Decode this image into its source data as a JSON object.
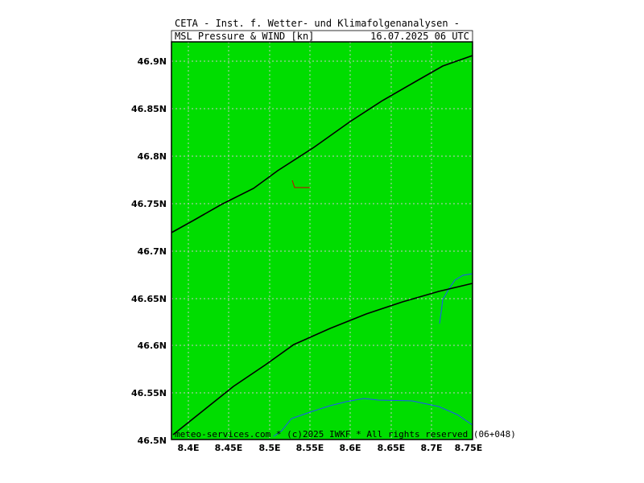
{
  "header": {
    "line1": "CETA - Inst. f. Wetter- und Klimafolgenanalysen -",
    "product": "MSL_Pressure_&_WIND_[kn]",
    "valid_time": "16.07.2025 06 UTC"
  },
  "map": {
    "background_color": "#00dd00",
    "grid_color": "#c8c8c8",
    "isobar_color": "#000000",
    "coast_color": "#2050ff",
    "wind_barb_color": "#cc0000",
    "lon_range": [
      8.38,
      8.75
    ],
    "lat_range": [
      46.5,
      46.92
    ],
    "lon_ticks": [
      "8.4E",
      "8.45E",
      "8.5E",
      "8.55E",
      "8.6E",
      "8.65E",
      "8.7E",
      "8.75E"
    ],
    "lat_ticks": [
      "46.5N",
      "46.55N",
      "46.6N",
      "46.65N",
      "46.7N",
      "46.75N",
      "46.8N",
      "46.85N",
      "46.9N"
    ]
  },
  "footer": {
    "copyright": "meteo-services.com * (c)2025 IWKF * All rights reserved (06+048)"
  }
}
